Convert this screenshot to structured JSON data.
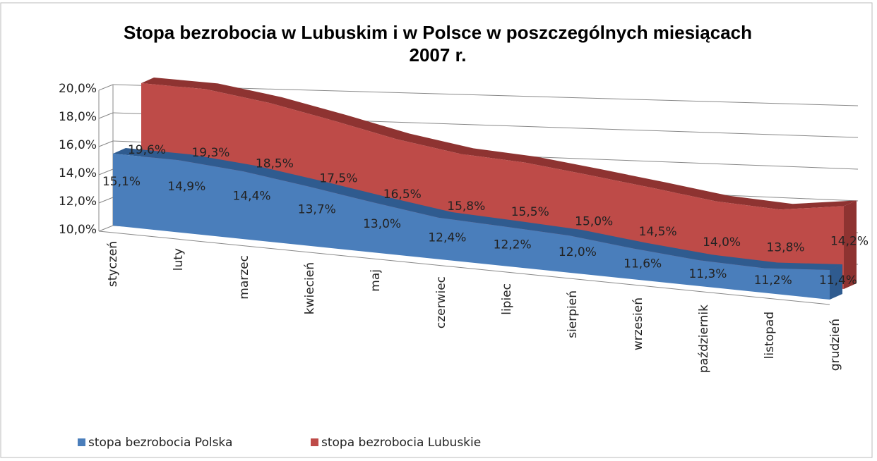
{
  "chart_data": {
    "type": "area3d",
    "title": "Stopa bezrobocia w Lubuskim i w Polsce w poszczególnych miesiącach 2007 r.",
    "categories": [
      "styczeń",
      "luty",
      "marzec",
      "kwiecień",
      "maj",
      "czerwiec",
      "lipiec",
      "sierpień",
      "wrzesień",
      "październik",
      "listopad",
      "grudzień"
    ],
    "series": [
      {
        "name": "stopa bezrobocia Polska",
        "color": "#4a7ebb",
        "values": [
          15.1,
          14.9,
          14.4,
          13.7,
          13.0,
          12.4,
          12.2,
          12.0,
          11.6,
          11.3,
          11.2,
          11.4
        ],
        "value_labels": [
          "15,1%",
          "14,9%",
          "14,4%",
          "13,7%",
          "13,0%",
          "12,4%",
          "12,2%",
          "12,0%",
          "11,6%",
          "11,3%",
          "11,2%",
          "11,4%"
        ]
      },
      {
        "name": "stopa bezrobocia Lubuskie",
        "color": "#be4b48",
        "values": [
          19.6,
          19.3,
          18.5,
          17.5,
          16.5,
          15.8,
          15.5,
          15.0,
          14.5,
          14.0,
          13.8,
          14.2
        ],
        "value_labels": [
          "19,6%",
          "19,3%",
          "18,5%",
          "17,5%",
          "16,5%",
          "15,8%",
          "15,5%",
          "15,0%",
          "14,5%",
          "14,0%",
          "13,8%",
          "14,2%"
        ]
      }
    ],
    "ylim": [
      10,
      20
    ],
    "yticks": [
      {
        "value": 10,
        "label": "10,0%"
      },
      {
        "value": 12,
        "label": "12,0%"
      },
      {
        "value": 14,
        "label": "14,0%"
      },
      {
        "value": 16,
        "label": "16,0%"
      },
      {
        "value": 18,
        "label": "18,0%"
      },
      {
        "value": 20,
        "label": "20,0%"
      }
    ],
    "grid": true,
    "legend": "bottom"
  }
}
